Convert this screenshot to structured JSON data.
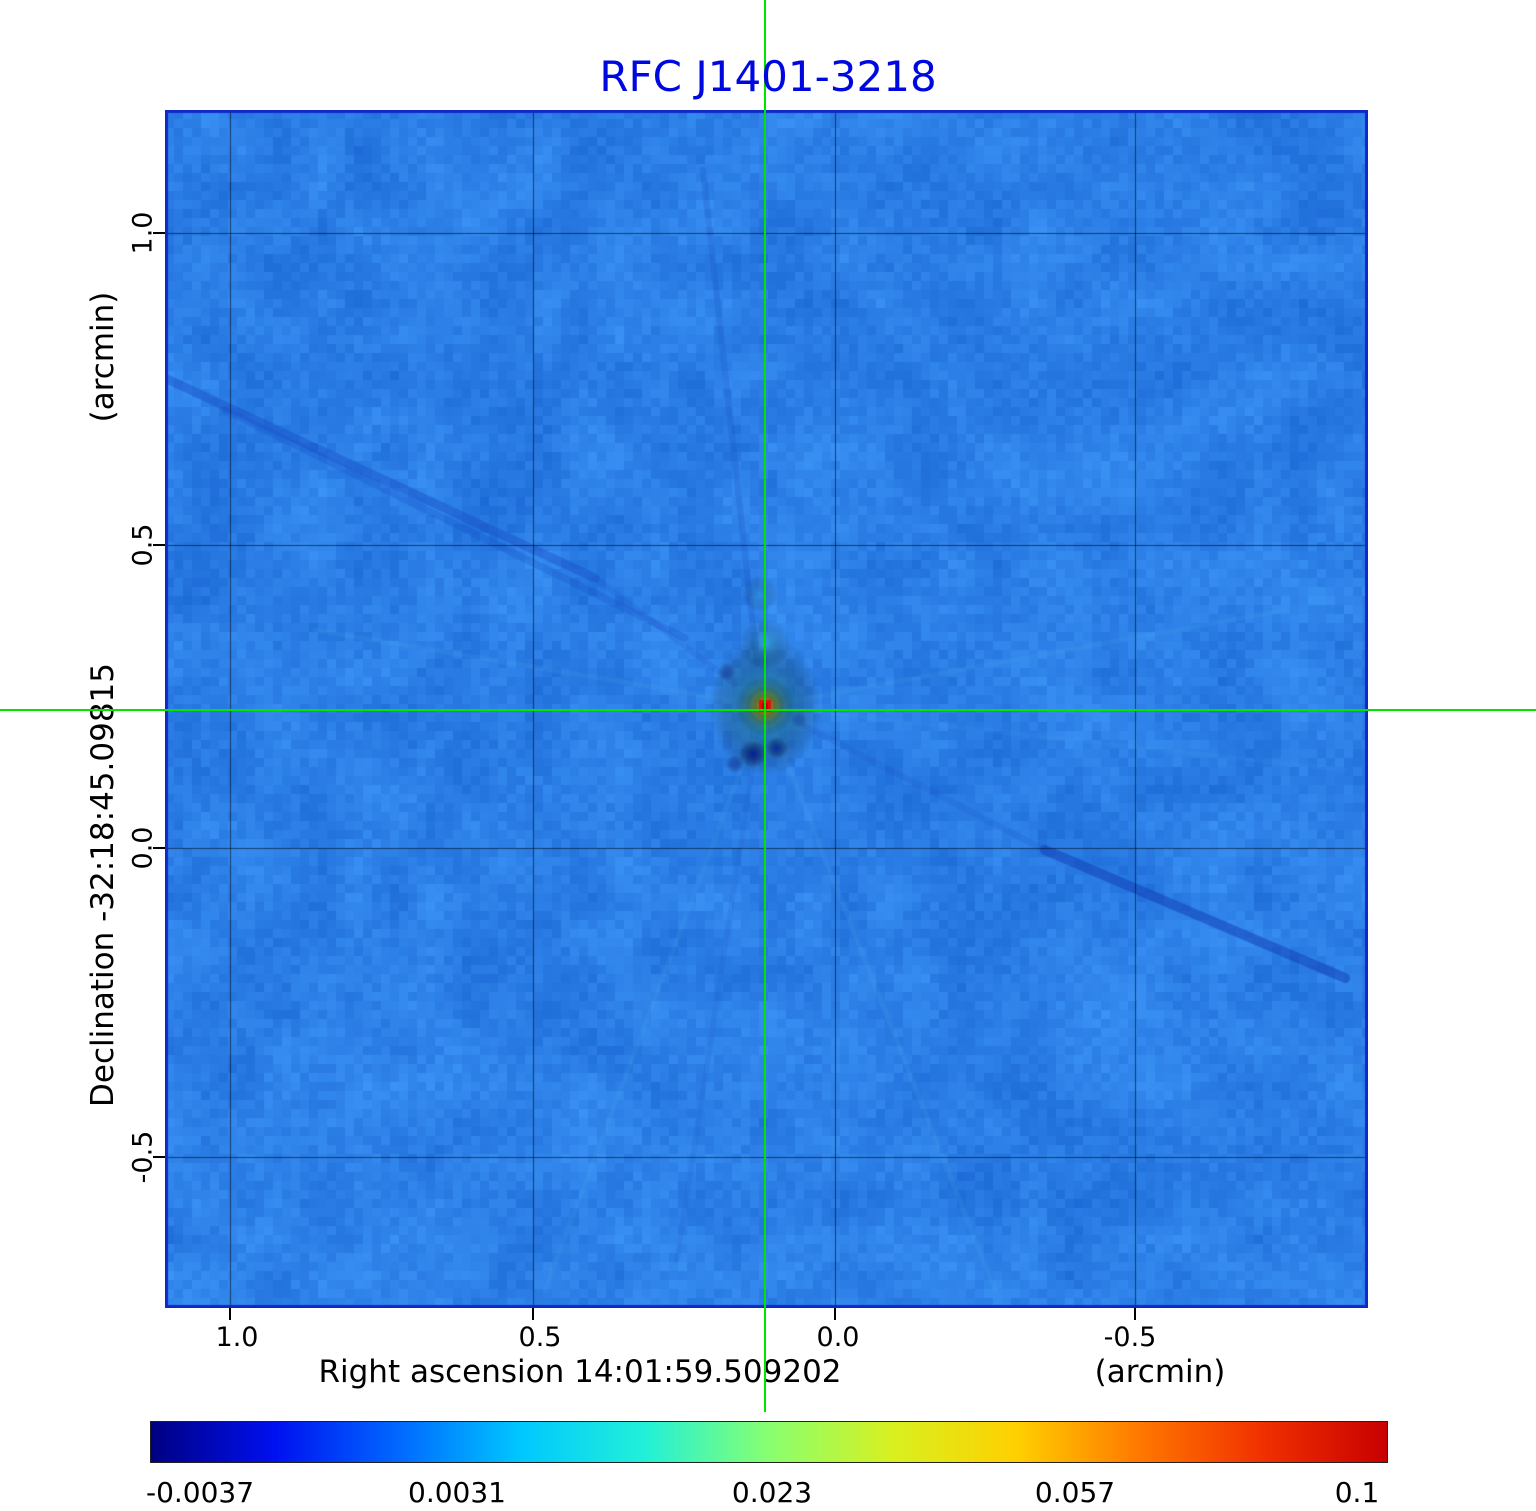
{
  "title": "RFC J1401-3218",
  "axes": {
    "y": {
      "unit_label": "(arcmin)",
      "axis_label": "Declination  -32:18:45.09815",
      "ticks": [
        "1.0",
        "0.5",
        "0.0",
        "-0.5"
      ]
    },
    "x": {
      "axis_label": "Right ascension  14:01:59.509202",
      "unit_label": "(arcmin)",
      "ticks": [
        "1.0",
        "0.5",
        "0.0",
        "-0.5"
      ]
    }
  },
  "colorbar": {
    "ticks": [
      "-0.0037",
      "0.0031",
      "0.023",
      "0.057",
      "0.1"
    ],
    "gradient": [
      "#000082",
      "#0010f0",
      "#0068ff",
      "#00c8ff",
      "#22f0d8",
      "#88ff70",
      "#d8f020",
      "#ffd000",
      "#ff7800",
      "#f03000",
      "#c80000"
    ]
  },
  "colors": {
    "title": "#0008e0",
    "crosshair": "#00e400",
    "map_background": "#2d7ce0",
    "grid": "#000000",
    "map_edge": "#1028c8"
  },
  "chart_data": {
    "type": "heatmap",
    "title": "RFC J1401-3218",
    "xlabel": "Right ascension 14:01:59.509202 (arcmin)",
    "ylabel": "Declination -32:18:45.09815 (arcmin)",
    "x_ticks_arcmin": [
      1.0,
      0.5,
      0.0,
      -0.5
    ],
    "y_ticks_arcmin": [
      1.0,
      0.5,
      0.0,
      -0.5
    ],
    "x_range_arcmin": [
      1.11,
      -0.89
    ],
    "y_range_arcmin": [
      1.2,
      -0.74
    ],
    "colormap": "jet",
    "value_range": [
      -0.0037,
      0.1
    ],
    "colorbar_ticks": [
      -0.0037,
      0.0031,
      0.023,
      0.057,
      0.1
    ],
    "grid": true,
    "source": {
      "name": "RFC J1401-3218",
      "ra": "14:01:59.509202",
      "dec": "-32:18:45.09815",
      "marker": "green-crosshair",
      "position_arcmin": {
        "x": 0.11,
        "y": 0.23
      },
      "peak_value": 0.1
    },
    "background_level_approx": 0.003,
    "features": [
      "bright compact source at crosshair with red core and yellow-orange halo",
      "dark negative sidelobes just below source",
      "faint diagonal sidelobe streak from upper-left toward center",
      "dark diagonal streak from center toward lower-right",
      "mottled blue noise background"
    ]
  }
}
